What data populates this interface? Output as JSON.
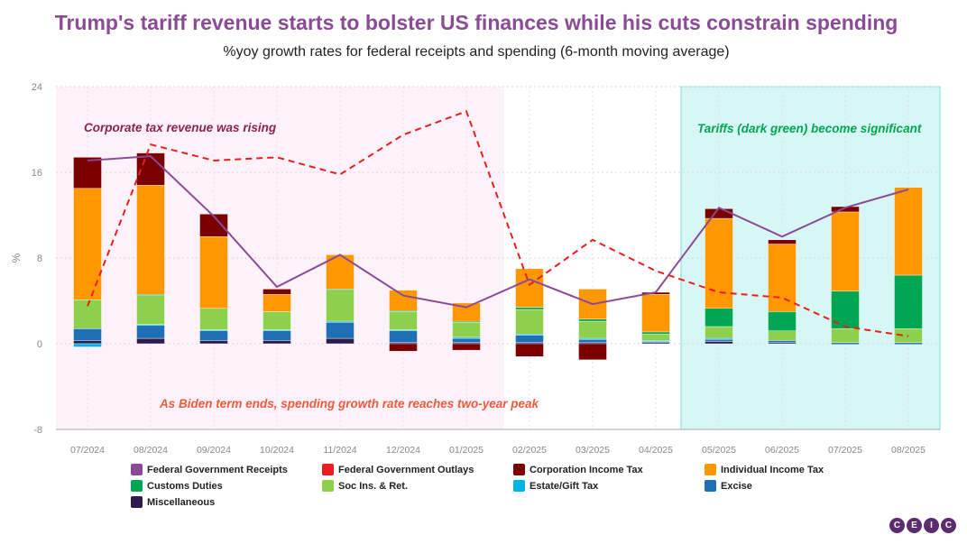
{
  "title": "Trump's tariff revenue starts to bolster US finances while his cuts constrain spending",
  "subtitle": "%yoy growth rates for federal receipts and spending (6-month moving average)",
  "logo": [
    "C",
    "E",
    "I",
    "C"
  ],
  "chart_data": {
    "type": "bar",
    "stacked": true,
    "ylabel": "%",
    "ylim": [
      -8,
      24
    ],
    "yticks": [
      -8,
      0,
      8,
      16,
      24
    ],
    "grid": true,
    "legend_position": "bottom",
    "categories": [
      "07/2024",
      "08/2024",
      "09/2024",
      "10/2024",
      "11/2024",
      "12/2024",
      "01/2025",
      "02/2025",
      "03/2025",
      "04/2025",
      "05/2025",
      "06/2025",
      "07/2025",
      "08/2025"
    ],
    "stack_series": [
      {
        "name": "Miscellaneous",
        "color": "#2d1b4e",
        "values": [
          0.3,
          0.5,
          0.3,
          0.3,
          0.5,
          0.1,
          0.1,
          0.1,
          0.1,
          0.1,
          0.2,
          0.1,
          0.1,
          0.1
        ]
      },
      {
        "name": "Excise",
        "color": "#1f6fb4",
        "values": [
          1.1,
          1.2,
          0.9,
          0.9,
          1.5,
          1.1,
          0.4,
          0.7,
          0.3,
          0.1,
          0.2,
          0.2,
          0.0,
          0.0
        ]
      },
      {
        "name": "Estate/Gift Tax",
        "color": "#00b4e6",
        "values": [
          -0.3,
          0.1,
          0.1,
          0.1,
          0.1,
          0.1,
          0.1,
          0.1,
          0.1,
          0.1,
          0.1,
          0.0,
          -0.1,
          -0.1
        ]
      },
      {
        "name": "Soc Ins. & Ret.",
        "color": "#8dd04e",
        "values": [
          2.7,
          2.7,
          2.0,
          1.7,
          2.9,
          1.7,
          1.4,
          2.3,
          1.6,
          0.6,
          1.1,
          0.9,
          1.3,
          1.3
        ]
      },
      {
        "name": "Customs Duties",
        "color": "#00a651",
        "values": [
          0.0,
          0.1,
          0.0,
          0.0,
          0.1,
          0.1,
          0.1,
          0.2,
          0.2,
          0.2,
          1.7,
          1.8,
          3.5,
          5.0
        ]
      },
      {
        "name": "Individual Income Tax",
        "color": "#ff9800",
        "values": [
          10.4,
          10.2,
          6.7,
          1.6,
          3.2,
          1.9,
          1.7,
          3.6,
          2.8,
          3.5,
          8.4,
          6.3,
          7.4,
          8.2
        ]
      },
      {
        "name": "Corporation Income Tax",
        "color": "#7b0000",
        "values": [
          2.9,
          3.0,
          2.1,
          0.5,
          0.0,
          -0.7,
          -0.6,
          -1.2,
          -1.5,
          0.2,
          0.9,
          0.4,
          0.5,
          0.0
        ]
      }
    ],
    "line_series": [
      {
        "name": "Federal Government Receipts",
        "color": "#8b4a96",
        "dashed": false,
        "values": [
          17.1,
          17.5,
          11.9,
          5.3,
          8.3,
          4.5,
          3.4,
          6.0,
          3.7,
          4.8,
          12.7,
          10.0,
          12.7,
          14.4
        ]
      },
      {
        "name": "Federal Government Outlays",
        "color": "#ee1c1c",
        "dashed": true,
        "values": [
          3.5,
          18.6,
          17.1,
          17.4,
          15.8,
          19.5,
          21.7,
          5.5,
          9.7,
          6.8,
          4.8,
          4.3,
          1.6,
          0.7
        ]
      }
    ],
    "legend": [
      {
        "name": "Federal Government Receipts",
        "color": "#8b4a96"
      },
      {
        "name": "Federal Government Outlays",
        "color": "#ee1c1c"
      },
      {
        "name": "Corporation Income Tax",
        "color": "#7b0000"
      },
      {
        "name": "Individual Income Tax",
        "color": "#ff9800"
      },
      {
        "name": "Customs Duties",
        "color": "#00a651"
      },
      {
        "name": "Soc Ins. & Ret.",
        "color": "#8dd04e"
      },
      {
        "name": "Estate/Gift Tax",
        "color": "#00b4e6"
      },
      {
        "name": "Excise",
        "color": "#1f6fb4"
      },
      {
        "name": "Miscellaneous",
        "color": "#2d1b4e"
      }
    ],
    "shaded_regions": [
      {
        "from": "07/2024",
        "to": "01/2025",
        "color": "#fdf2fa"
      },
      {
        "from": "05/2025",
        "to": "08/2025",
        "color": "#d6f7f5"
      }
    ],
    "annotations": [
      {
        "text": "Corporate tax revenue was rising",
        "color": "#8b2252"
      },
      {
        "text": "Tariffs (dark green) become significant",
        "color": "#00a651"
      },
      {
        "text": "As Biden term ends, spending growth rate reaches two-year peak",
        "color": "#f05a3c"
      }
    ]
  }
}
